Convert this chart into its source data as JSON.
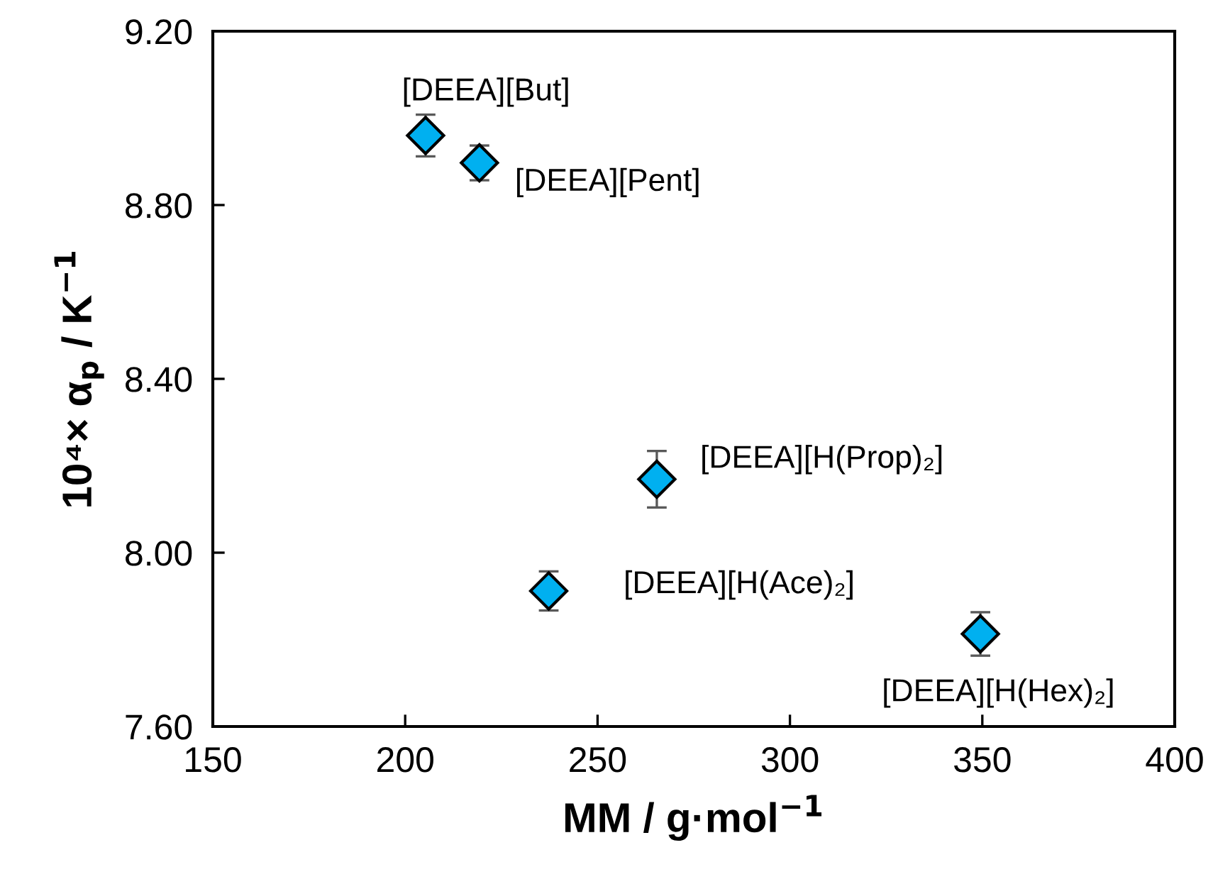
{
  "chart_data": {
    "type": "scatter",
    "xlabel": "MM / g·mol$^{−1}$",
    "ylabel": "10⁴× α$_{p}$ / K$^{−1}$",
    "x": [
      205.3,
      219.3,
      237.3,
      265.4,
      349.5
    ],
    "series": [
      {
        "color": "#00b0f0",
        "values": [
          8.96,
          8.897,
          7.912,
          8.169,
          7.813
        ],
        "errors": [
          0.048,
          0.04,
          0.045,
          0.065,
          0.05
        ]
      }
    ],
    "annotations": [
      {
        "text": "[DEEA][But]",
        "x": 205.3,
        "y": 8.96
      },
      {
        "text": "[DEEA][Pent]",
        "x": 219.3,
        "y": 8.897
      },
      {
        "text": "[DEEA][H(Ace)₂]",
        "x": 237.3,
        "y": 7.912
      },
      {
        "text": "[DEEA][H(Prop)₂]",
        "x": 265.4,
        "y": 8.169
      },
      {
        "text": "[DEEA][H(Hex)₂]",
        "x": 349.5,
        "y": 7.813
      }
    ],
    "xlim": [
      150,
      400
    ],
    "xticks": [
      150,
      200,
      250,
      300,
      350,
      400
    ],
    "ylim": [
      7.6,
      9.2
    ],
    "yticks": [
      {
        "value": 7.6,
        "label": "7.60"
      },
      {
        "value": 8.0,
        "label": "8.00"
      },
      {
        "value": 8.4,
        "label": "8.40"
      },
      {
        "value": 8.8,
        "label": "8.80"
      },
      {
        "value": 9.2,
        "label": "9.20"
      }
    ],
    "marker": "diamond"
  }
}
